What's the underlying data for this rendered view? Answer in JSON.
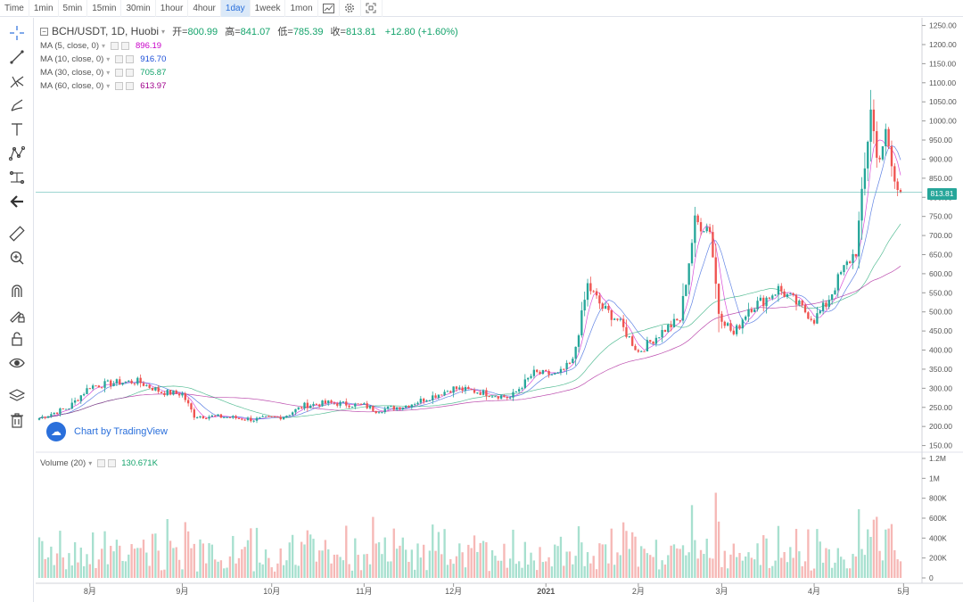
{
  "toolbar": {
    "intervals": [
      "Time",
      "1min",
      "5min",
      "15min",
      "30min",
      "1hour",
      "4hour",
      "1day",
      "1week",
      "1mon"
    ],
    "active_interval": "1day"
  },
  "legend": {
    "symbol": "BCH/USDT, 1D, Huobi",
    "open_label": "开=",
    "open": "800.99",
    "high_label": "高=",
    "high": "841.07",
    "low_label": "低=",
    "low": "785.39",
    "close_label": "收=",
    "close": "813.81",
    "change": "+12.80 (+1.60%)",
    "ma": [
      {
        "label": "MA (5, close, 0)",
        "value": "896.19",
        "color": "#c800c8"
      },
      {
        "label": "MA (10, close, 0)",
        "value": "916.70",
        "color": "#1c4fd8"
      },
      {
        "label": "MA (30, close, 0)",
        "value": "705.87",
        "color": "#13a36b"
      },
      {
        "label": "MA (60, close, 0)",
        "value": "613.97",
        "color": "#a0008c"
      }
    ]
  },
  "volume": {
    "label": "Volume (20)",
    "value": "130.671K"
  },
  "watermark": "Chart by TradingView",
  "last_price_tag": "813.81",
  "colors": {
    "up": "#26a69a",
    "down": "#ef5350",
    "vol_up": "#a7e0cf",
    "vol_down": "#f6b8b6",
    "accent": "#2a6fdb"
  },
  "chart_data": {
    "type": "candlestick",
    "price_axis": {
      "ticks": [
        150,
        200,
        250,
        300,
        350,
        400,
        450,
        500,
        550,
        600,
        650,
        700,
        750,
        800,
        850,
        900,
        950,
        1000,
        1050,
        1100,
        1150,
        1200,
        1250
      ],
      "labels": [
        "150.00",
        "200.00",
        "250.00",
        "300.00",
        "350.00",
        "400.00",
        "450.00",
        "500.00",
        "550.00",
        "600.00",
        "650.00",
        "700.00",
        "750.00",
        "800.00",
        "850.00",
        "900.00",
        "950.00",
        "1000.00",
        "1050.00",
        "1100.00",
        "1150.00",
        "1200.00",
        "1250.00"
      ],
      "ylim": [
        135,
        1270
      ]
    },
    "volume_axis": {
      "ticks": [
        0,
        200000,
        400000,
        600000,
        800000,
        1000000,
        1200000
      ],
      "labels": [
        "0",
        "200K",
        "400K",
        "600K",
        "800K",
        "1M",
        "1.2M"
      ],
      "ylim": [
        0,
        1200000
      ]
    },
    "x_axis": {
      "labels": [
        "8月",
        "9月",
        "10月",
        "11月",
        "12月",
        "2021",
        "2月",
        "3月",
        "4月",
        "5月"
      ]
    },
    "last_close": 813.81,
    "close_path": [
      [
        "2020-07-15",
        222
      ],
      [
        "2020-07-25",
        250
      ],
      [
        "2020-08-01",
        305
      ],
      [
        "2020-08-10",
        315
      ],
      [
        "2020-08-17",
        318
      ],
      [
        "2020-08-25",
        290
      ],
      [
        "2020-09-01",
        285
      ],
      [
        "2020-09-05",
        228
      ],
      [
        "2020-09-15",
        225
      ],
      [
        "2020-09-25",
        218
      ],
      [
        "2020-10-05",
        226
      ],
      [
        "2020-10-12",
        255
      ],
      [
        "2020-10-20",
        262
      ],
      [
        "2020-11-01",
        255
      ],
      [
        "2020-11-05",
        242
      ],
      [
        "2020-11-15",
        254
      ],
      [
        "2020-11-20",
        268
      ],
      [
        "2020-11-25",
        282
      ],
      [
        "2020-12-01",
        300
      ],
      [
        "2020-12-10",
        290
      ],
      [
        "2020-12-20",
        275
      ],
      [
        "2020-12-28",
        340
      ],
      [
        "2021-01-05",
        335
      ],
      [
        "2021-01-10",
        370
      ],
      [
        "2021-01-15",
        570
      ],
      [
        "2021-01-20",
        510
      ],
      [
        "2021-01-25",
        480
      ],
      [
        "2021-02-01",
        395
      ],
      [
        "2021-02-10",
        455
      ],
      [
        "2021-02-15",
        480
      ],
      [
        "2021-02-20",
        735
      ],
      [
        "2021-02-25",
        720
      ],
      [
        "2021-02-28",
        500
      ],
      [
        "2021-03-05",
        440
      ],
      [
        "2021-03-10",
        510
      ],
      [
        "2021-03-15",
        530
      ],
      [
        "2021-03-20",
        560
      ],
      [
        "2021-03-25",
        530
      ],
      [
        "2021-04-01",
        480
      ],
      [
        "2021-04-05",
        520
      ],
      [
        "2021-04-10",
        600
      ],
      [
        "2021-04-15",
        660
      ],
      [
        "2021-04-18",
        870
      ],
      [
        "2021-04-20",
        1040
      ],
      [
        "2021-04-22",
        900
      ],
      [
        "2021-04-25",
        960
      ],
      [
        "2021-04-28",
        840
      ],
      [
        "2021-04-29",
        813.81
      ]
    ],
    "ma_series": [
      {
        "name": "MA (30, close, 0)",
        "last": 705.87
      },
      {
        "name": "MA (60, close, 0)",
        "last": 613.97
      }
    ],
    "volume_max": 1200000
  }
}
